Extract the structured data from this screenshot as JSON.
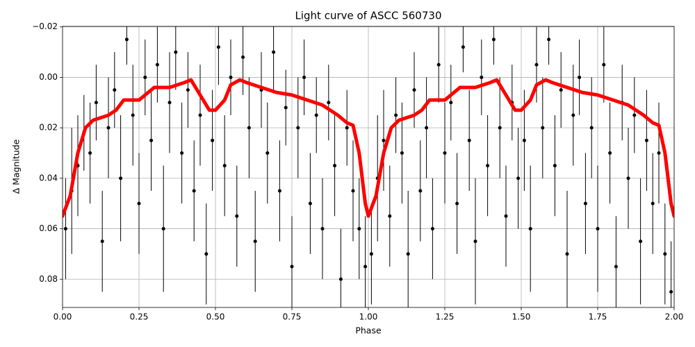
{
  "chart_data": {
    "type": "scatter",
    "title": "Light curve of ASCC 560730",
    "xlabel": "Phase",
    "ylabel": "Δ Magnitude",
    "xlim": [
      0,
      2
    ],
    "ylim": [
      0.0912,
      -0.0202
    ],
    "xticks": [
      {
        "value": 0,
        "label": "0.00"
      },
      {
        "value": 0.25,
        "label": "0.25"
      },
      {
        "value": 0.5,
        "label": "0.50"
      },
      {
        "value": 0.75,
        "label": "0.75"
      },
      {
        "value": 1,
        "label": "1.00"
      },
      {
        "value": 1.25,
        "label": "1.25"
      },
      {
        "value": 1.5,
        "label": "1.50"
      },
      {
        "value": 1.75,
        "label": "1.75"
      },
      {
        "value": 2,
        "label": "2.00"
      }
    ],
    "yticks": [
      {
        "value": -0.02,
        "label": "−0.02"
      },
      {
        "value": 0,
        "label": "0.00"
      },
      {
        "value": 0.02,
        "label": "0.02"
      },
      {
        "value": 0.04,
        "label": "0.04"
      },
      {
        "value": 0.06,
        "label": "0.06"
      },
      {
        "value": 0.08,
        "label": "0.08"
      }
    ],
    "grid": true,
    "series": [
      {
        "type": "errorbar",
        "color": "#000000",
        "x": [
          0.01,
          0.03,
          0.05,
          0.07,
          0.09,
          0.11,
          0.13,
          0.15,
          0.17,
          0.19,
          0.21,
          0.23,
          0.25,
          0.27,
          0.29,
          0.31,
          0.33,
          0.35,
          0.37,
          0.39,
          0.41,
          0.43,
          0.45,
          0.47,
          0.49,
          0.51,
          0.53,
          0.55,
          0.57,
          0.59,
          0.61,
          0.63,
          0.65,
          0.67,
          0.69,
          0.71,
          0.73,
          0.75,
          0.77,
          0.79,
          0.81,
          0.83,
          0.85,
          0.87,
          0.89,
          0.91,
          0.93,
          0.95,
          0.97,
          0.99,
          1.01,
          1.03,
          1.05,
          1.07,
          1.09,
          1.11,
          1.13,
          1.15,
          1.17,
          1.19,
          1.21,
          1.23,
          1.25,
          1.27,
          1.29,
          1.31,
          1.33,
          1.35,
          1.37,
          1.39,
          1.41,
          1.43,
          1.45,
          1.47,
          1.49,
          1.51,
          1.53,
          1.55,
          1.57,
          1.59,
          1.61,
          1.63,
          1.65,
          1.67,
          1.69,
          1.71,
          1.73,
          1.75,
          1.77,
          1.79,
          1.81,
          1.83,
          1.85,
          1.87,
          1.89,
          1.91,
          1.93,
          1.95,
          1.97,
          1.99
        ],
        "values": [
          0.06,
          0.045,
          0.035,
          0.022,
          0.03,
          0.01,
          0.065,
          0.02,
          0.005,
          0.04,
          -0.015,
          0.015,
          0.05,
          0.0,
          0.025,
          -0.005,
          0.06,
          0.01,
          -0.01,
          0.03,
          0.005,
          0.045,
          0.015,
          0.07,
          0.025,
          -0.012,
          0.035,
          0.0,
          0.055,
          -0.008,
          0.02,
          0.065,
          0.005,
          0.03,
          -0.01,
          0.045,
          0.012,
          0.075,
          0.02,
          0.0,
          0.05,
          0.015,
          0.06,
          0.01,
          0.035,
          0.08,
          0.02,
          0.045,
          0.06,
          0.075,
          0.07,
          0.04,
          0.025,
          0.055,
          0.015,
          0.03,
          0.07,
          0.005,
          0.045,
          0.02,
          0.06,
          -0.005,
          0.03,
          0.01,
          0.05,
          -0.012,
          0.025,
          0.065,
          0.0,
          0.035,
          -0.015,
          0.02,
          0.055,
          0.01,
          0.04,
          0.025,
          0.06,
          -0.005,
          0.02,
          -0.015,
          0.035,
          0.005,
          0.07,
          0.015,
          0.0,
          0.05,
          0.02,
          0.06,
          -0.005,
          0.03,
          0.075,
          0.01,
          0.04,
          0.015,
          0.065,
          0.025,
          0.05,
          0.03,
          0.07,
          0.085
        ],
        "errors": [
          0.02,
          0.025,
          0.02,
          0.015,
          0.02,
          0.015,
          0.02,
          0.02,
          0.015,
          0.025,
          0.01,
          0.02,
          0.02,
          0.015,
          0.02,
          0.015,
          0.025,
          0.02,
          0.015,
          0.02,
          0.015,
          0.02,
          0.02,
          0.02,
          0.02,
          0.015,
          0.02,
          0.015,
          0.02,
          0.015,
          0.02,
          0.02,
          0.015,
          0.02,
          0.015,
          0.02,
          0.015,
          0.02,
          0.02,
          0.015,
          0.02,
          0.015,
          0.02,
          0.015,
          0.02,
          0.02,
          0.015,
          0.02,
          0.02,
          0.02,
          0.02,
          0.025,
          0.02,
          0.02,
          0.015,
          0.02,
          0.025,
          0.015,
          0.02,
          0.02,
          0.02,
          0.015,
          0.02,
          0.015,
          0.02,
          0.01,
          0.02,
          0.025,
          0.015,
          0.02,
          0.01,
          0.02,
          0.02,
          0.015,
          0.02,
          0.02,
          0.025,
          0.015,
          0.02,
          0.01,
          0.02,
          0.015,
          0.025,
          0.02,
          0.015,
          0.02,
          0.02,
          0.025,
          0.015,
          0.02,
          0.02,
          0.015,
          0.02,
          0.015,
          0.025,
          0.02,
          0.02,
          0.02,
          0.02,
          0.02
        ]
      },
      {
        "type": "line",
        "color": "#ff0000",
        "x": [
          0,
          0.025,
          0.05,
          0.075,
          0.1,
          0.15,
          0.175,
          0.2,
          0.25,
          0.3,
          0.35,
          0.4,
          0.42,
          0.45,
          0.48,
          0.5,
          0.53,
          0.55,
          0.58,
          0.6,
          0.65,
          0.7,
          0.75,
          0.8,
          0.85,
          0.9,
          0.93,
          0.95,
          0.97,
          0.99,
          1,
          1.025,
          1.05,
          1.075,
          1.1,
          1.15,
          1.175,
          1.2,
          1.25,
          1.3,
          1.35,
          1.4,
          1.42,
          1.45,
          1.48,
          1.5,
          1.53,
          1.55,
          1.58,
          1.6,
          1.65,
          1.7,
          1.75,
          1.8,
          1.85,
          1.9,
          1.93,
          1.95,
          1.97,
          1.99,
          2
        ],
        "values": [
          0.055,
          0.047,
          0.03,
          0.02,
          0.017,
          0.015,
          0.013,
          0.009,
          0.009,
          0.004,
          0.004,
          0.002,
          0.001,
          0.007,
          0.013,
          0.013,
          0.009,
          0.003,
          0.001,
          0.002,
          0.004,
          0.006,
          0.007,
          0.009,
          0.011,
          0.015,
          0.018,
          0.019,
          0.03,
          0.05,
          0.055,
          0.047,
          0.03,
          0.02,
          0.017,
          0.015,
          0.013,
          0.009,
          0.009,
          0.004,
          0.004,
          0.002,
          0.001,
          0.007,
          0.013,
          0.013,
          0.009,
          0.003,
          0.001,
          0.002,
          0.004,
          0.006,
          0.007,
          0.009,
          0.011,
          0.015,
          0.018,
          0.019,
          0.03,
          0.05,
          0.055
        ]
      }
    ]
  }
}
